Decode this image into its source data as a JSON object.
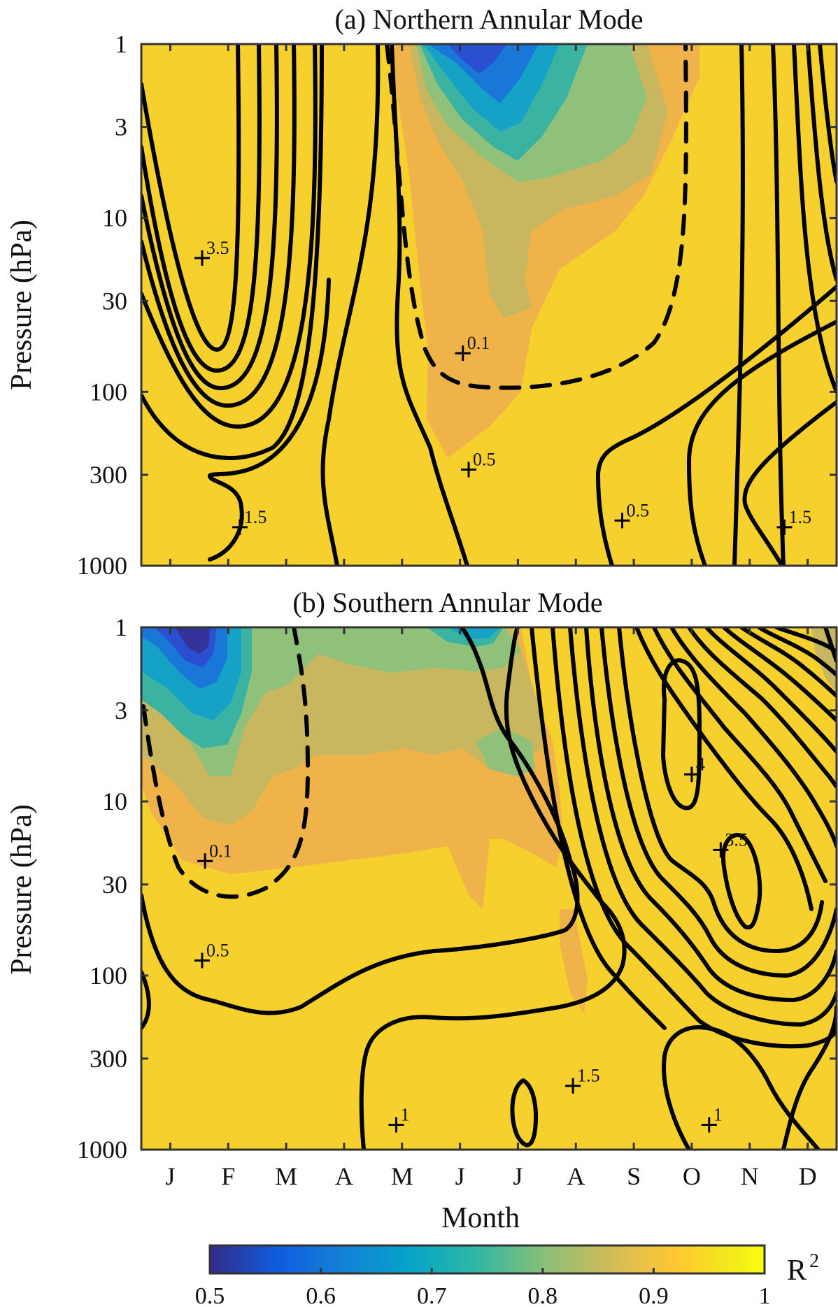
{
  "chart_data": [
    {
      "type": "heatmap",
      "title": "(a) Northern Annular Mode",
      "ylabel": "Pressure (hPa)",
      "xlabel": "",
      "x_categories": [
        "J",
        "F",
        "M",
        "A",
        "M",
        "J",
        "J",
        "A",
        "S",
        "O",
        "N",
        "D"
      ],
      "y_scale": "log",
      "y_reversed": true,
      "yticks": [
        1,
        3,
        10,
        30,
        100,
        300,
        1000
      ],
      "ylim": [
        1,
        1000
      ],
      "fill_variable": "R²",
      "fill_range": [
        0.5,
        1.0
      ],
      "contour_labels": [
        {
          "text": "3.5",
          "month": 1.55,
          "p": 17
        },
        {
          "text": "0.1",
          "month": 6.05,
          "p": 60
        },
        {
          "text": "0.5",
          "month": 6.15,
          "p": 280
        },
        {
          "text": "1.5",
          "month": 2.2,
          "p": 600
        },
        {
          "text": "0.5",
          "month": 8.8,
          "p": 550
        },
        {
          "text": "1.5",
          "month": 11.6,
          "p": 600
        }
      ]
    },
    {
      "type": "heatmap",
      "title": "(b) Southern Annular Mode",
      "ylabel": "Pressure (hPa)",
      "xlabel": "Month",
      "x_categories": [
        "J",
        "F",
        "M",
        "A",
        "M",
        "J",
        "J",
        "A",
        "S",
        "O",
        "N",
        "D"
      ],
      "y_scale": "log",
      "y_reversed": true,
      "yticks": [
        1,
        3,
        10,
        30,
        100,
        300,
        1000
      ],
      "ylim": [
        1,
        1000
      ],
      "fill_variable": "R²",
      "fill_range": [
        0.5,
        1.0
      ],
      "contour_labels": [
        {
          "text": "0.1",
          "month": 1.6,
          "p": 22
        },
        {
          "text": "0.5",
          "month": 1.55,
          "p": 82
        },
        {
          "text": "4",
          "month": 10.0,
          "p": 7
        },
        {
          "text": "3.5",
          "month": 10.5,
          "p": 19
        },
        {
          "text": "1.5",
          "month": 7.95,
          "p": 430
        },
        {
          "text": "1",
          "month": 4.9,
          "p": 720
        },
        {
          "text": "1",
          "month": 10.3,
          "p": 720
        }
      ]
    }
  ],
  "colorbar": {
    "label": "R",
    "label_exponent": "2",
    "ticks": [
      "0.5",
      "0.6",
      "0.7",
      "0.8",
      "0.9",
      "1"
    ],
    "colors": [
      "#352a87",
      "#0f5cdd",
      "#1481d6",
      "#06a4ca",
      "#2eb7a4",
      "#87bf77",
      "#d1bb59",
      "#fec832",
      "#f5e71d",
      "#f9fb0e"
    ]
  },
  "fill_colors": {
    "background": "#f6d02c",
    "orange": "#efb34a",
    "khaki": "#c9b760",
    "green": "#8fc17a",
    "teal": "#3bb3a2",
    "cyan": "#16a2c7",
    "blue": "#1977d8",
    "deep_blue": "#2a4fd0",
    "navy": "#343399"
  }
}
